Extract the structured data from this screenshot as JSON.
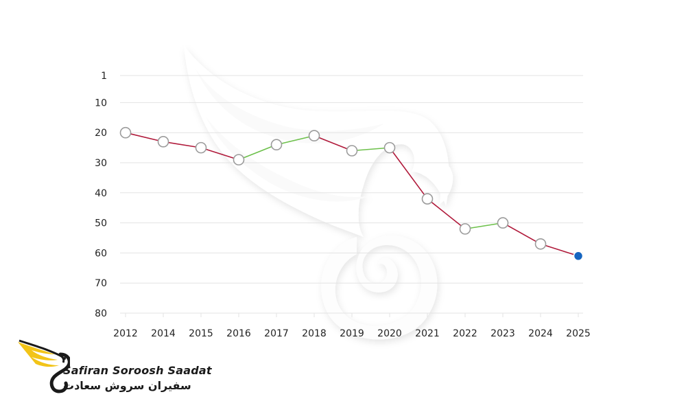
{
  "chart_data": {
    "type": "line",
    "title": "",
    "xlabel": "",
    "ylabel": "",
    "categories": [
      "2012",
      "2014",
      "2015",
      "2016",
      "2017",
      "2018",
      "2019",
      "2020",
      "2021",
      "2022",
      "2023",
      "2024",
      "2025"
    ],
    "values": [
      20,
      23,
      25,
      29,
      24,
      21,
      26,
      25,
      42,
      52,
      50,
      57,
      61
    ],
    "y_ticks": [
      1,
      10,
      20,
      30,
      40,
      50,
      60,
      70,
      80
    ],
    "ylim": [
      1,
      80
    ],
    "y_axis_inverted": true,
    "grid": true,
    "colors": {
      "decline": "#b0193a",
      "improve": "#6cc04a",
      "marker_fill": "#ffffff",
      "marker_stroke": "#9b9b9b",
      "last_marker": "#1565c0",
      "grid": "#e3e3e3"
    }
  },
  "logo": {
    "name_en": "Safiran Soroosh Saadat",
    "name_fa": "سفیران سروش سعادت",
    "colors": {
      "wing": "#f2c418",
      "ink": "#1a1a1a"
    }
  }
}
